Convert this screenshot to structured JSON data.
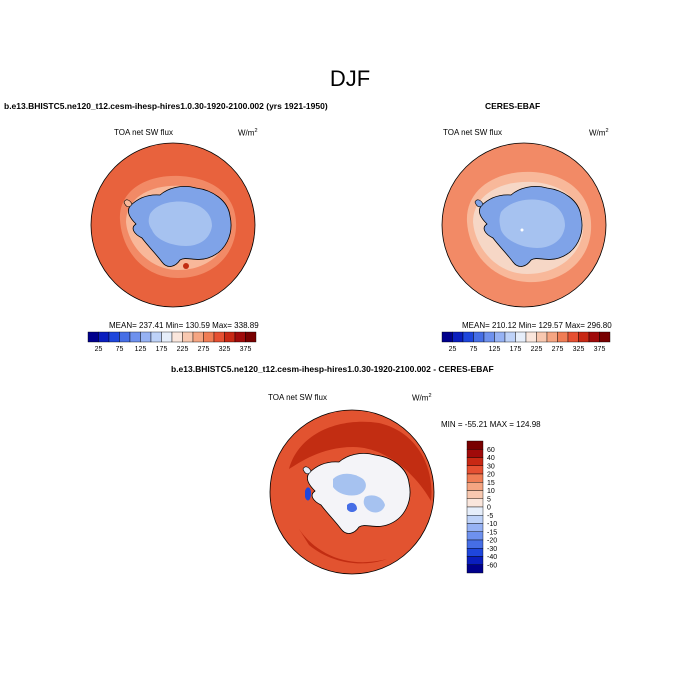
{
  "figure": {
    "title": "DJF",
    "colors": {
      "ocean_warm": "#e8623d",
      "ocean_mid": "#f28a66",
      "ocean_light": "#f8b89a",
      "ice_blue": "#7fa3e8",
      "ice_light": "#a6c2f0",
      "diff_dark": "#c22d12",
      "diff_mid": "#e25330",
      "diff_white": "#f4f4f8"
    }
  },
  "chart_data": [
    {
      "type": "heatmap",
      "projection": "south polar stereographic",
      "title": "b.e13.BHISTC5.ne120_t12.cesm-ihesp-hires1.0.30-1920-2100.002 (yrs 1921-1950)",
      "left_label": "TOA net SW flux",
      "units_base": "W/m",
      "units_exp": "2",
      "stats": "MEAN= 237.41  Min= 130.59  Max= 338.89",
      "mean": 237.41,
      "min": 130.59,
      "max": 338.89,
      "colorbar": {
        "orientation": "horizontal",
        "levels": [
          25,
          50,
          75,
          100,
          125,
          150,
          175,
          200,
          225,
          250,
          275,
          300,
          325,
          350,
          375
        ],
        "tick_labels": [
          "25",
          "75",
          "125",
          "175",
          "225",
          "275",
          "325",
          "375"
        ],
        "colors": [
          "#00008c",
          "#0a1ebe",
          "#1e46dc",
          "#466ee6",
          "#6e91ee",
          "#96b2f4",
          "#bed2f8",
          "#e6eefa",
          "#fae6dc",
          "#f8c8b0",
          "#f5a582",
          "#f07d55",
          "#e65032",
          "#c82814",
          "#a00a0a",
          "#780000"
        ]
      }
    },
    {
      "type": "heatmap",
      "projection": "south polar stereographic",
      "title": "CERES-EBAF",
      "left_label": "TOA net SW flux",
      "units_base": "W/m",
      "units_exp": "2",
      "stats": "MEAN= 210.12  Min= 129.57  Max= 296.80",
      "mean": 210.12,
      "min": 129.57,
      "max": 296.8,
      "colorbar": {
        "orientation": "horizontal",
        "levels": [
          25,
          50,
          75,
          100,
          125,
          150,
          175,
          200,
          225,
          250,
          275,
          300,
          325,
          350,
          375
        ],
        "tick_labels": [
          "25",
          "75",
          "125",
          "175",
          "225",
          "275",
          "325",
          "375"
        ],
        "colors": [
          "#00008c",
          "#0a1ebe",
          "#1e46dc",
          "#466ee6",
          "#6e91ee",
          "#96b2f4",
          "#bed2f8",
          "#e6eefa",
          "#fae6dc",
          "#f8c8b0",
          "#f5a582",
          "#f07d55",
          "#e65032",
          "#c82814",
          "#a00a0a",
          "#780000"
        ]
      }
    },
    {
      "type": "heatmap",
      "projection": "south polar stereographic",
      "title": "b.e13.BHISTC5.ne120_t12.cesm-ihesp-hires1.0.30-1920-2100.002 - CERES-EBAF",
      "left_label": "TOA net SW flux",
      "units_base": "W/m",
      "units_exp": "2",
      "stats": "MIN = -55.21  MAX = 124.98",
      "min": -55.21,
      "max": 124.98,
      "colorbar": {
        "orientation": "vertical",
        "levels": [
          -60,
          -40,
          -30,
          -20,
          -15,
          -10,
          -5,
          0,
          5,
          10,
          15,
          20,
          30,
          40,
          60
        ],
        "tick_labels": [
          "60",
          "40",
          "30",
          "20",
          "15",
          "10",
          "5",
          "0",
          "-5",
          "-10",
          "-15",
          "-20",
          "-30",
          "-40",
          "-60"
        ],
        "colors": [
          "#00008c",
          "#0a1ebe",
          "#1e46dc",
          "#466ee6",
          "#6e91ee",
          "#96b2f4",
          "#bed2f8",
          "#e6eefa",
          "#fae6dc",
          "#f8c8b0",
          "#f5a582",
          "#f07d55",
          "#e65032",
          "#c82814",
          "#a00a0a",
          "#780000"
        ]
      }
    }
  ]
}
